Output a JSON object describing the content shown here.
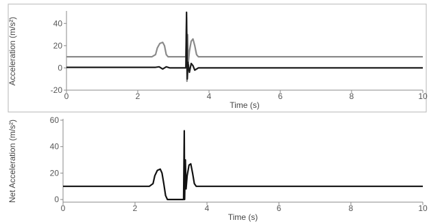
{
  "chart_data": [
    {
      "type": "line",
      "xlabel": "Time (s)",
      "ylabel": "Acceleration (m/s²)",
      "xlim": [
        0,
        10
      ],
      "ylim": [
        -20,
        50
      ],
      "xticks": [
        0,
        2,
        4,
        6,
        8,
        10
      ],
      "yticks": [
        -20,
        0,
        20,
        40
      ],
      "xtick_labels": [
        "0",
        "2",
        "4",
        "6",
        "8",
        "10"
      ],
      "ytick_labels": [
        "-20",
        "0",
        "20",
        "40"
      ],
      "grid": false,
      "series": [
        {
          "color": "#8a8a8a",
          "x": [
            0,
            2.4,
            2.5,
            2.55,
            2.62,
            2.7,
            2.75,
            2.8,
            2.85,
            3.35,
            3.37,
            3.38,
            3.4,
            3.42,
            3.45,
            3.5,
            3.55,
            3.6,
            3.65,
            3.7,
            10
          ],
          "y": [
            10,
            10,
            12,
            18,
            22,
            23,
            20,
            12,
            10,
            10,
            45,
            -12,
            30,
            5,
            15,
            24,
            26,
            20,
            12,
            10,
            10
          ]
        },
        {
          "color": "#1a1a1a",
          "x": [
            0,
            2.5,
            2.6,
            2.7,
            2.8,
            2.9,
            3.35,
            3.37,
            3.39,
            3.41,
            3.45,
            3.5,
            3.55,
            3.6,
            3.7,
            10
          ],
          "y": [
            0.5,
            0.5,
            1,
            -1,
            1,
            0,
            0,
            50,
            -10,
            5,
            -4,
            4,
            2,
            -2,
            0,
            0
          ]
        }
      ]
    },
    {
      "type": "line",
      "xlabel": "Time (s)",
      "ylabel": "Net Acceleration (m/s²)",
      "xlim": [
        0,
        10
      ],
      "ylim": [
        -2,
        60
      ],
      "xticks": [
        0,
        2,
        4,
        6,
        8,
        10
      ],
      "yticks": [
        0,
        20,
        40,
        60
      ],
      "xtick_labels": [
        "0",
        "2",
        "4",
        "6",
        "8",
        "10"
      ],
      "ytick_labels": [
        "0",
        "20",
        "40",
        "60"
      ],
      "grid": false,
      "series": [
        {
          "color": "#111111",
          "x": [
            0,
            2.4,
            2.5,
            2.55,
            2.62,
            2.7,
            2.75,
            2.8,
            2.85,
            2.9,
            3.35,
            3.37,
            3.38,
            3.4,
            3.42,
            3.45,
            3.5,
            3.55,
            3.6,
            3.65,
            3.7,
            10
          ],
          "y": [
            10,
            10,
            12,
            18,
            22,
            23,
            20,
            12,
            3,
            0,
            0,
            52,
            0,
            30,
            8,
            18,
            26,
            27,
            20,
            12,
            10,
            10
          ]
        }
      ]
    }
  ]
}
